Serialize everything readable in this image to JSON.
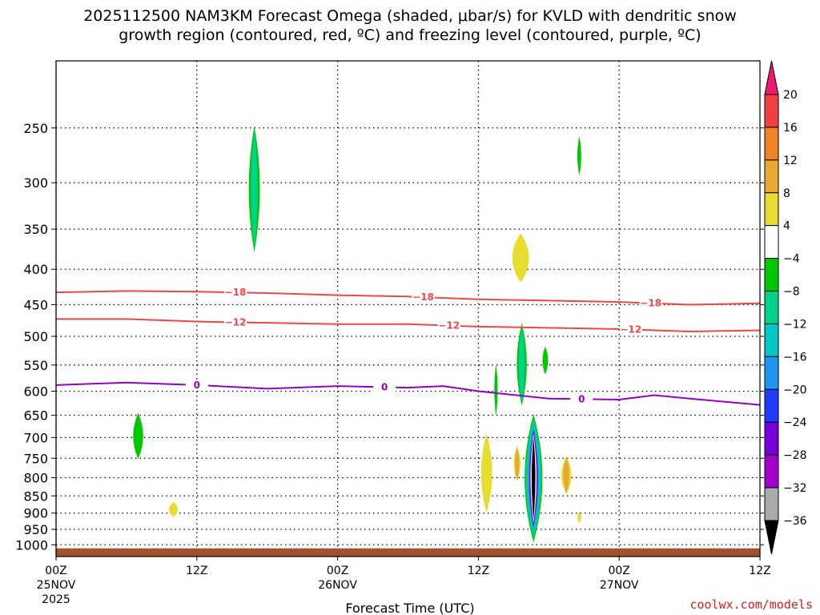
{
  "chart_data": {
    "type": "time-height-section",
    "title_line1": "2025112500 NAM3KM Forecast Omega (shaded, μbar/s) for KVLD with dendritic snow",
    "title_line2": "growth region (contoured, red, ºC) and freezing level (contoured, purple, ºC)",
    "xlabel": "Forecast Time (UTC)",
    "credit": "coolwx.com/models",
    "x_range_hours": [
      0,
      60
    ],
    "x_ticks": [
      {
        "hour": 0,
        "l1": "00Z",
        "l2": "25NOV",
        "l3": "2025"
      },
      {
        "hour": 12,
        "l1": "12Z",
        "l2": "",
        "l3": ""
      },
      {
        "hour": 24,
        "l1": "00Z",
        "l2": "26NOV",
        "l3": ""
      },
      {
        "hour": 36,
        "l1": "12Z",
        "l2": "",
        "l3": ""
      },
      {
        "hour": 48,
        "l1": "00Z",
        "l2": "27NOV",
        "l3": ""
      },
      {
        "hour": 60,
        "l1": "12Z",
        "l2": "",
        "l3": ""
      }
    ],
    "y_range_hpa": [
      1040,
      200
    ],
    "y_ticks": [
      250,
      300,
      350,
      400,
      450,
      500,
      550,
      600,
      650,
      700,
      750,
      800,
      850,
      900,
      950,
      1000
    ],
    "colorbar": {
      "levels": [
        "20",
        "16",
        "12",
        "8",
        "4",
        "−4",
        "−8",
        "−12",
        "−16",
        "−20",
        "−24",
        "−28",
        "−32",
        "−36"
      ],
      "colors": [
        "#f0196e",
        "#f04040",
        "#f08228",
        "#e6aa32",
        "#e6dc32",
        "#ffffff",
        "#00c800",
        "#00d28c",
        "#00c8c8",
        "#1e96f0",
        "#1e3cff",
        "#7800dc",
        "#a000c8",
        "#aaaaaa",
        "#000000"
      ]
    },
    "ground_color": "#a0522d",
    "contours": [
      {
        "name": "-18C isotherm",
        "label": "−18",
        "color": "#f04646",
        "points": [
          [
            0,
            432
          ],
          [
            6,
            430
          ],
          [
            12,
            431
          ],
          [
            18,
            433
          ],
          [
            24,
            436
          ],
          [
            30,
            438
          ],
          [
            36,
            442
          ],
          [
            42,
            444
          ],
          [
            48,
            446
          ],
          [
            54,
            450
          ],
          [
            60,
            448
          ]
        ],
        "label_hours": [
          15.3,
          31.3,
          50.7
        ]
      },
      {
        "name": "-12C isotherm",
        "label": "−12",
        "color": "#f04646",
        "points": [
          [
            0,
            472
          ],
          [
            6,
            472
          ],
          [
            12,
            476
          ],
          [
            18,
            478
          ],
          [
            24,
            480
          ],
          [
            30,
            480
          ],
          [
            36,
            484
          ],
          [
            42,
            486
          ],
          [
            48,
            488
          ],
          [
            54,
            492
          ],
          [
            60,
            490
          ]
        ],
        "label_hours": [
          15.3,
          33.5,
          49.0
        ]
      },
      {
        "name": "0C freezing level",
        "label": "0",
        "color": "#9600c8",
        "points": [
          [
            0,
            588
          ],
          [
            6,
            583
          ],
          [
            12,
            588
          ],
          [
            18,
            595
          ],
          [
            24,
            590
          ],
          [
            30,
            593
          ],
          [
            33,
            590
          ],
          [
            36,
            600
          ],
          [
            38,
            605
          ],
          [
            42,
            615
          ],
          [
            48,
            617
          ],
          [
            51,
            608
          ],
          [
            54,
            615
          ],
          [
            60,
            628
          ]
        ],
        "label_hours": [
          12.0,
          28.0,
          44.8
        ]
      }
    ],
    "omega_features": [
      {
        "name": "upper-level-ascent-day1",
        "hour": 16.9,
        "p_top": 248,
        "p_bot": 378,
        "width_h": 1.0,
        "colors": [
          "#00c800",
          "#00d28c"
        ]
      },
      {
        "name": "upper-level-ascent-27nov",
        "hour": 44.6,
        "p_top": 257,
        "p_bot": 293,
        "width_h": 0.35,
        "colors": [
          "#00c800"
        ]
      },
      {
        "name": "low-level-ascent-25nov",
        "hour": 7.0,
        "p_top": 645,
        "p_bot": 752,
        "width_h": 0.9,
        "colors": [
          "#00c800"
        ]
      },
      {
        "name": "low-level-descent-25nov",
        "hour": 10.0,
        "p_top": 868,
        "p_bot": 912,
        "width_h": 0.8,
        "colors": [
          "#e6dc32"
        ]
      },
      {
        "name": "upper-level-descent-26nov",
        "hour": 39.6,
        "p_top": 355,
        "p_bot": 418,
        "width_h": 1.5,
        "colors": [
          "#e6dc32"
        ]
      },
      {
        "name": "mid-level-ascent-26nov",
        "hour": 39.7,
        "p_top": 478,
        "p_bot": 630,
        "width_h": 0.9,
        "colors": [
          "#00c800",
          "#00d28c"
        ]
      },
      {
        "name": "mid-level-ascent-small",
        "hour": 37.5,
        "p_top": 548,
        "p_bot": 652,
        "width_h": 0.3,
        "colors": [
          "#00c800"
        ]
      },
      {
        "name": "mid-level-ascent-east",
        "hour": 41.7,
        "p_top": 517,
        "p_bot": 568,
        "width_h": 0.5,
        "colors": [
          "#00c800"
        ]
      },
      {
        "name": "low-level-descent-west",
        "hour": 36.7,
        "p_top": 690,
        "p_bot": 900,
        "width_h": 1.0,
        "colors": [
          "#e6dc32"
        ]
      },
      {
        "name": "low-level-descent-east",
        "hour": 43.5,
        "p_top": 745,
        "p_bot": 845,
        "width_h": 0.9,
        "colors": [
          "#e6dc32",
          "#e6aa32"
        ]
      },
      {
        "name": "low-level-descent-tiny",
        "hour": 44.6,
        "p_top": 895,
        "p_bot": 930,
        "width_h": 0.35,
        "colors": [
          "#e6dc32"
        ]
      },
      {
        "name": "low-level-descent-core-west",
        "hour": 39.3,
        "p_top": 720,
        "p_bot": 810,
        "width_h": 0.6,
        "colors": [
          "#e6dc32",
          "#e6aa32"
        ]
      },
      {
        "name": "strong-ascent-core",
        "hour": 40.7,
        "p_top": 648,
        "p_bot": 992,
        "width_h": 1.6,
        "colors": [
          "#00c800",
          "#00d28c",
          "#00c8c8",
          "#1e96f0",
          "#7800dc",
          "#ffffff",
          "#000000"
        ]
      }
    ],
    "ground_bumps": [
      {
        "hours": [
          0,
          60
        ],
        "p": 1012
      },
      {
        "hours": [
          18,
          22
        ],
        "p": 1002
      },
      {
        "hours": [
          32,
          36
        ],
        "p": 1003
      },
      {
        "hours": [
          41,
          48
        ],
        "p": 1003
      }
    ]
  }
}
